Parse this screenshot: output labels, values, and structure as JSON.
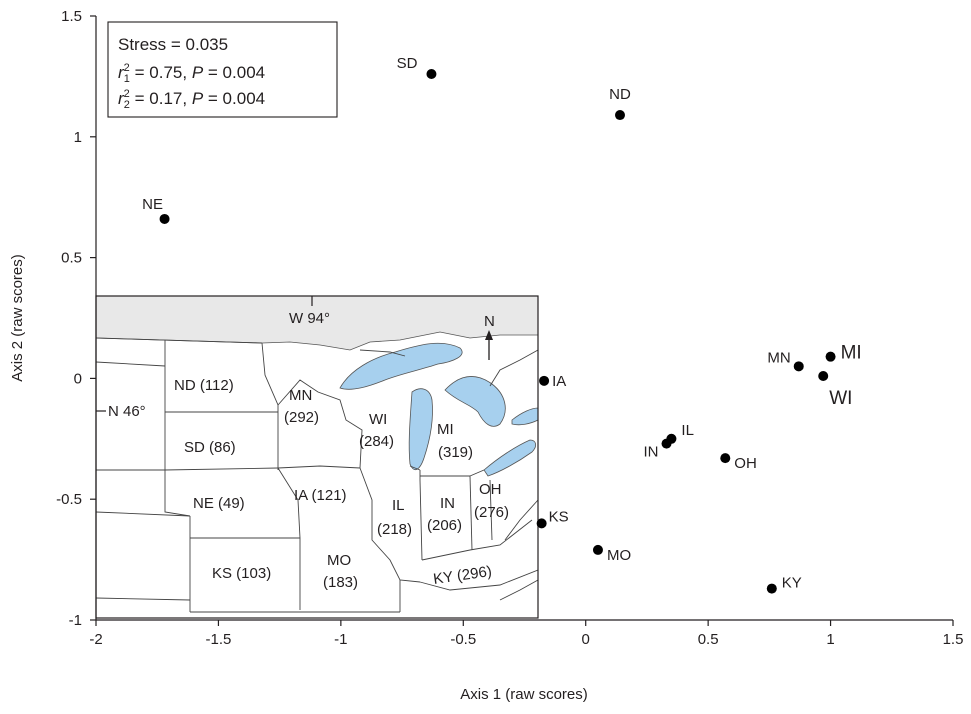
{
  "chart_data": {
    "type": "scatter",
    "title": "",
    "xlabel": "Axis 1 (raw scores)",
    "ylabel": "Axis 2 (raw scores)",
    "xlim": [
      -2,
      1.5
    ],
    "ylim": [
      -1,
      1.5
    ],
    "xticks": [
      -2,
      -1.5,
      -1,
      -0.5,
      0,
      0.5,
      1,
      1.5
    ],
    "xtick_labels": [
      "-2",
      "-1.5",
      "-1",
      "-0.5",
      "0",
      "0.5",
      "1",
      "1.5"
    ],
    "yticks": [
      -1,
      -0.5,
      0,
      0.5,
      1,
      1.5
    ],
    "ytick_labels": [
      "-1",
      "-0.5",
      "0",
      "0.5",
      "1",
      "1.5"
    ],
    "grid": false,
    "points": [
      {
        "label": "SD",
        "x": -0.63,
        "y": 1.26
      },
      {
        "label": "ND",
        "x": 0.14,
        "y": 1.09
      },
      {
        "label": "NE",
        "x": -1.72,
        "y": 0.66
      },
      {
        "label": "IA",
        "x": -0.17,
        "y": -0.01
      },
      {
        "label": "MN",
        "x": 0.87,
        "y": 0.05
      },
      {
        "label": "MI",
        "x": 1.0,
        "y": 0.09
      },
      {
        "label": "WI",
        "x": 0.97,
        "y": 0.01
      },
      {
        "label": "IL",
        "x": 0.35,
        "y": -0.25
      },
      {
        "label": "IN",
        "x": 0.33,
        "y": -0.27
      },
      {
        "label": "OH",
        "x": 0.57,
        "y": -0.33
      },
      {
        "label": "KS",
        "x": -0.18,
        "y": -0.6
      },
      {
        "label": "MO",
        "x": 0.05,
        "y": -0.71
      },
      {
        "label": "KY",
        "x": 0.76,
        "y": -0.87
      }
    ],
    "stats_box": {
      "stress_line": "Stress = 0.035",
      "r1": {
        "r": "r",
        "sup": "2",
        "sub": "1",
        "rest_a": " = 0.75, ",
        "p": "P",
        "rest_b": " = 0.004"
      },
      "r2": {
        "r": "r",
        "sup": "2",
        "sub": "2",
        "rest_a": " = 0.17, ",
        "p": "P",
        "rest_b": " = 0.004"
      }
    },
    "inset_map": {
      "meridian_label": "W 94°",
      "parallel_label": "N 46°",
      "north_label": "N",
      "lake_color": "#a7d0ee",
      "outside_color": "#e8e8e8",
      "states": [
        {
          "name": "ND (112)"
        },
        {
          "name": "SD (86)"
        },
        {
          "name": "NE (49)"
        },
        {
          "name": "KS (103)"
        },
        {
          "name": "MN",
          "count": "(292)"
        },
        {
          "name": "IA (121)"
        },
        {
          "name": "MO",
          "count": "(183)"
        },
        {
          "name": "WI",
          "count": "(284)"
        },
        {
          "name": "IL",
          "count": "(218)"
        },
        {
          "name": "MI",
          "count": "(319)"
        },
        {
          "name": "IN",
          "count": "(206)"
        },
        {
          "name": "OH",
          "count": "(276)"
        },
        {
          "name": "KY (296)"
        }
      ]
    }
  }
}
